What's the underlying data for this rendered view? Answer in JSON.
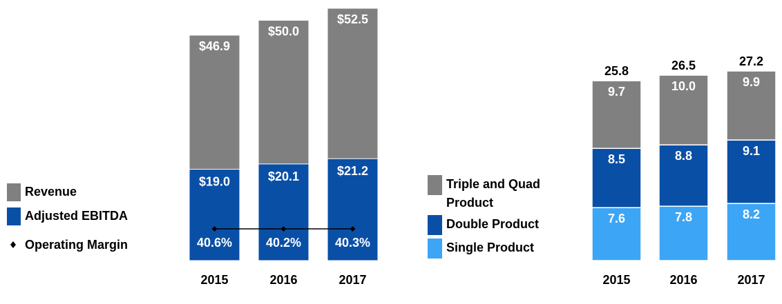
{
  "colors": {
    "grey": "#808080",
    "dark_blue": "#0a4fa6",
    "light_blue": "#3da5f5",
    "line": "#000000"
  },
  "chart_data": [
    {
      "type": "bar",
      "title": "",
      "categories": [
        "2015",
        "2016",
        "2017"
      ],
      "series": [
        {
          "name": "Revenue",
          "values": [
            46.9,
            50.0,
            52.5
          ],
          "labels": [
            "$46.9",
            "$50.0",
            "$52.5"
          ]
        },
        {
          "name": "Adjusted EBITDA",
          "values": [
            19.0,
            20.1,
            21.2
          ],
          "labels": [
            "$19.0",
            "$20.1",
            "$21.2"
          ]
        },
        {
          "name": "Operating Margin",
          "values": [
            40.6,
            40.2,
            40.3
          ],
          "labels": [
            "40.6%",
            "40.2%",
            "40.3%"
          ]
        }
      ],
      "legend": [
        {
          "label": "Revenue",
          "marker": "square",
          "color_key": "grey"
        },
        {
          "label": "Adjusted EBITDA",
          "marker": "square",
          "color_key": "dark_blue"
        },
        {
          "label": "Operating Margin",
          "marker": "diamond",
          "color_key": "line"
        }
      ],
      "ylim": [
        0,
        52.5
      ]
    },
    {
      "type": "bar",
      "stacked": true,
      "title": "",
      "categories": [
        "2015",
        "2016",
        "2017"
      ],
      "totals": [
        "25.8",
        "26.5",
        "27.2"
      ],
      "series": [
        {
          "name": "Single Product",
          "values": [
            7.6,
            7.8,
            8.2
          ],
          "labels": [
            "7.6",
            "7.8",
            "8.2"
          ]
        },
        {
          "name": "Double Product",
          "values": [
            8.5,
            8.8,
            9.1
          ],
          "labels": [
            "8.5",
            "8.8",
            "9.1"
          ]
        },
        {
          "name": "Triple and Quad Product",
          "values": [
            9.7,
            10.0,
            9.9
          ],
          "labels": [
            "9.7",
            "10.0",
            "9.9"
          ]
        }
      ],
      "legend": [
        {
          "lines": [
            "Triple and Quad",
            "Product"
          ],
          "color_key": "grey"
        },
        {
          "lines": [
            "Double Product"
          ],
          "color_key": "dark_blue"
        },
        {
          "lines": [
            "Single Product"
          ],
          "color_key": "light_blue"
        }
      ],
      "ylim": [
        0,
        27.2
      ]
    }
  ]
}
